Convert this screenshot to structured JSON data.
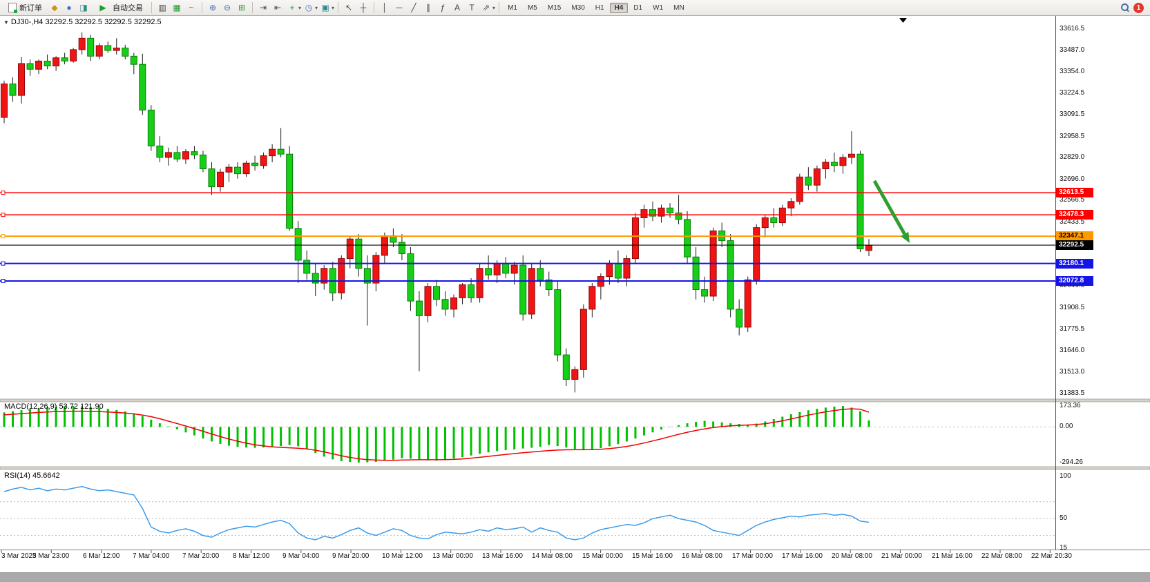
{
  "toolbar": {
    "new_order_label": "新订单",
    "autotrading_label": "自动交易",
    "timeframes": [
      "M1",
      "M5",
      "M15",
      "M30",
      "H1",
      "H4",
      "D1",
      "W1",
      "MN"
    ],
    "active_timeframe": "H4",
    "notification_count": "1",
    "icons": {
      "market_watch": "◆",
      "profile": "●",
      "terminal": "◨",
      "play": "▶",
      "bars": "▥",
      "candles": "▦",
      "line": "~",
      "zoom_in": "⊕",
      "zoom_out": "⊖",
      "tile": "⊞",
      "auto_scroll": "⇥",
      "shift": "⇤",
      "plus": "+",
      "clock": "◷",
      "template": "▣",
      "dropdown": "▾",
      "cursor": "↖",
      "crosshair": "┼",
      "vline": "│",
      "hline": "─",
      "tline": "╱",
      "channel": "∥",
      "fibo": "ƒ",
      "text": "A",
      "label": "T",
      "arrows": "⇗"
    }
  },
  "chart": {
    "title": "DJ30-,H4 32292.5 32292.5 32292.5 32292.5",
    "dropdown_glyph": "▼"
  },
  "chart_data": {
    "type": "candlestick",
    "symbol": "DJ30-",
    "period": "H4",
    "price_axis": {
      "top": 33616.5,
      "bottom": 31383.5,
      "labels": [
        "33616.5",
        "33487.0",
        "33354.0",
        "33224.5",
        "33091.5",
        "32958.5",
        "32829.0",
        "32696.0",
        "32566.5",
        "32433.5",
        "32041.5",
        "31908.5",
        "31775.5",
        "31646.0",
        "31513.0",
        "31383.5"
      ]
    },
    "time_labels": [
      "3 Mar 2023",
      "5 Mar 23:00",
      "6 Mar 12:00",
      "7 Mar 04:00",
      "7 Mar 20:00",
      "8 Mar 12:00",
      "9 Mar 04:00",
      "9 Mar 20:00",
      "10 Mar 12:00",
      "13 Mar 00:00",
      "13 Mar 16:00",
      "14 Mar 08:00",
      "15 Mar 00:00",
      "15 Mar 16:00",
      "16 Mar 08:00",
      "17 Mar 00:00",
      "17 Mar 16:00",
      "20 Mar 08:00",
      "21 Mar 00:00",
      "21 Mar 16:00",
      "22 Mar 08:00",
      "22 Mar 20:30"
    ],
    "colors": {
      "up": "#f01414",
      "down": "#17cf17",
      "up_border": "#8c0a0a",
      "down_border": "#0a7d0a",
      "wick": "#1c1c1c"
    },
    "candles": [
      [
        33075,
        33300,
        33040,
        33280
      ],
      [
        33280,
        33320,
        33170,
        33210
      ],
      [
        33210,
        33445,
        33160,
        33405
      ],
      [
        33405,
        33430,
        33330,
        33370
      ],
      [
        33370,
        33430,
        33340,
        33420
      ],
      [
        33420,
        33460,
        33370,
        33390
      ],
      [
        33390,
        33450,
        33360,
        33440
      ],
      [
        33440,
        33470,
        33400,
        33420
      ],
      [
        33420,
        33500,
        33410,
        33490
      ],
      [
        33490,
        33595,
        33460,
        33560
      ],
      [
        33560,
        33580,
        33420,
        33450
      ],
      [
        33450,
        33530,
        33430,
        33515
      ],
      [
        33515,
        33540,
        33470,
        33485
      ],
      [
        33485,
        33560,
        33460,
        33500
      ],
      [
        33500,
        33520,
        33430,
        33450
      ],
      [
        33450,
        33470,
        33340,
        33400
      ],
      [
        33400,
        33465,
        33090,
        33120
      ],
      [
        33120,
        33150,
        32870,
        32900
      ],
      [
        32900,
        32960,
        32800,
        32830
      ],
      [
        32830,
        32890,
        32780,
        32860
      ],
      [
        32860,
        32900,
        32800,
        32820
      ],
      [
        32820,
        32880,
        32790,
        32865
      ],
      [
        32865,
        32900,
        32820,
        32845
      ],
      [
        32845,
        32870,
        32740,
        32760
      ],
      [
        32760,
        32800,
        32600,
        32650
      ],
      [
        32650,
        32760,
        32620,
        32740
      ],
      [
        32740,
        32790,
        32680,
        32770
      ],
      [
        32770,
        32800,
        32700,
        32730
      ],
      [
        32730,
        32810,
        32710,
        32795
      ],
      [
        32795,
        32840,
        32750,
        32780
      ],
      [
        32780,
        32860,
        32760,
        32840
      ],
      [
        32840,
        32910,
        32800,
        32880
      ],
      [
        32880,
        33010,
        32830,
        32850
      ],
      [
        32850,
        32900,
        32380,
        32395
      ],
      [
        32395,
        32440,
        32060,
        32200
      ],
      [
        32200,
        32260,
        32080,
        32120
      ],
      [
        32120,
        32180,
        31980,
        32060
      ],
      [
        32060,
        32170,
        32020,
        32150
      ],
      [
        32150,
        32190,
        31950,
        32000
      ],
      [
        32000,
        32230,
        31960,
        32210
      ],
      [
        32210,
        32350,
        32150,
        32330
      ],
      [
        32330,
        32360,
        32100,
        32150
      ],
      [
        32150,
        32230,
        31800,
        32060
      ],
      [
        32060,
        32250,
        32010,
        32230
      ],
      [
        32230,
        32370,
        32180,
        32350
      ],
      [
        32350,
        32395,
        32280,
        32310
      ],
      [
        32310,
        32360,
        32200,
        32240
      ],
      [
        32240,
        32280,
        31890,
        31950
      ],
      [
        31950,
        32010,
        31520,
        31860
      ],
      [
        31860,
        32060,
        31820,
        32040
      ],
      [
        32040,
        32080,
        31920,
        31960
      ],
      [
        31960,
        32010,
        31860,
        31900
      ],
      [
        31900,
        31990,
        31850,
        31970
      ],
      [
        31970,
        32060,
        31930,
        32050
      ],
      [
        32050,
        32090,
        31940,
        31970
      ],
      [
        31970,
        32180,
        31940,
        32150
      ],
      [
        32150,
        32230,
        32080,
        32110
      ],
      [
        32110,
        32200,
        32060,
        32180
      ],
      [
        32180,
        32220,
        32090,
        32120
      ],
      [
        32120,
        32190,
        32050,
        32170
      ],
      [
        32170,
        32230,
        31830,
        31870
      ],
      [
        31870,
        32180,
        31840,
        32150
      ],
      [
        32150,
        32200,
        32040,
        32080
      ],
      [
        32080,
        32130,
        31980,
        32020
      ],
      [
        32020,
        32070,
        31580,
        31620
      ],
      [
        31620,
        31660,
        31430,
        31470
      ],
      [
        31470,
        31550,
        31390,
        31530
      ],
      [
        31530,
        31930,
        31480,
        31900
      ],
      [
        31900,
        32060,
        31850,
        32040
      ],
      [
        32040,
        32120,
        31960,
        32100
      ],
      [
        32100,
        32200,
        32050,
        32180
      ],
      [
        32180,
        32260,
        32060,
        32090
      ],
      [
        32090,
        32230,
        32040,
        32210
      ],
      [
        32210,
        32490,
        32180,
        32460
      ],
      [
        32460,
        32540,
        32400,
        32510
      ],
      [
        32510,
        32560,
        32440,
        32470
      ],
      [
        32470,
        32540,
        32430,
        32520
      ],
      [
        32520,
        32550,
        32460,
        32490
      ],
      [
        32490,
        32600,
        32420,
        32450
      ],
      [
        32450,
        32500,
        32180,
        32220
      ],
      [
        32220,
        32280,
        31960,
        32020
      ],
      [
        32020,
        32100,
        31940,
        31980
      ],
      [
        31980,
        32400,
        31950,
        32380
      ],
      [
        32380,
        32430,
        32280,
        32320
      ],
      [
        32320,
        32360,
        31850,
        31900
      ],
      [
        31900,
        31960,
        31740,
        31790
      ],
      [
        31790,
        32100,
        31760,
        32080
      ],
      [
        32080,
        32420,
        32050,
        32400
      ],
      [
        32400,
        32480,
        32340,
        32460
      ],
      [
        32460,
        32520,
        32400,
        32430
      ],
      [
        32430,
        32540,
        32410,
        32520
      ],
      [
        32520,
        32580,
        32470,
        32560
      ],
      [
        32560,
        32730,
        32540,
        32710
      ],
      [
        32710,
        32770,
        32630,
        32660
      ],
      [
        32660,
        32780,
        32620,
        32760
      ],
      [
        32760,
        32820,
        32700,
        32800
      ],
      [
        32800,
        32860,
        32740,
        32780
      ],
      [
        32780,
        32850,
        32730,
        32830
      ],
      [
        32830,
        32990,
        32790,
        32850
      ],
      [
        32850,
        32870,
        32250,
        32270
      ],
      [
        32260,
        32330,
        32225,
        32292.5
      ]
    ],
    "lines": [
      {
        "value": 32613.5,
        "color": "#ff0000",
        "label": "32613.5",
        "width": 1.5,
        "text": "#fff",
        "handle": true
      },
      {
        "value": 32478.3,
        "color": "#ff0000",
        "label": "32478.3",
        "width": 1.5,
        "text": "#fff",
        "handle": true
      },
      {
        "value": 32347.1,
        "color": "#ff9900",
        "label": "32347.1",
        "width": 2,
        "text": "#000",
        "handle": true
      },
      {
        "value": 32292.5,
        "color": "#000000",
        "label": "32292.5",
        "width": 1.2,
        "text": "#fff",
        "handle": false
      },
      {
        "value": 32180.1,
        "color": "#1414e6",
        "label": "32180.1",
        "width": 2,
        "text": "#fff",
        "handle": true
      },
      {
        "value": 32072.8,
        "color": "#1414e6",
        "label": "32072.8",
        "width": 2,
        "text": "#fff",
        "handle": true
      }
    ],
    "arrow": {
      "from": [
        1266,
        240
      ],
      "to": [
        1317,
        330
      ],
      "color": "#2f9e2f"
    },
    "indicators": [
      {
        "name": "MACD",
        "label": "MACD(12,26,9) 53.72 121.90",
        "axis_labels": [
          "173.36",
          "0.00",
          "-294.26"
        ],
        "max": 173.36,
        "min": -294.26,
        "hist_color": "#00c000",
        "signal_color": "#f00000",
        "histogram": [
          120,
          130,
          138,
          148,
          155,
          162,
          168,
          172,
          173,
          170,
          165,
          158,
          150,
          140,
          128,
          112,
          90,
          60,
          30,
          5,
          -20,
          -45,
          -70,
          -95,
          -120,
          -140,
          -155,
          -165,
          -170,
          -172,
          -170,
          -165,
          -158,
          -150,
          -160,
          -185,
          -215,
          -245,
          -268,
          -282,
          -290,
          -294,
          -292,
          -288,
          -280,
          -270,
          -258,
          -262,
          -270,
          -276,
          -278,
          -272,
          -262,
          -250,
          -236,
          -222,
          -210,
          -200,
          -192,
          -186,
          -178,
          -172,
          -164,
          -150,
          -158,
          -170,
          -182,
          -190,
          -186,
          -175,
          -160,
          -142,
          -120,
          -96,
          -70,
          -45,
          -22,
          -2,
          15,
          30,
          42,
          50,
          45,
          38,
          30,
          25,
          20,
          28,
          45,
          65,
          85,
          105,
          122,
          138,
          150,
          160,
          168,
          173,
          160,
          130,
          53.72
        ],
        "signal": [
          100,
          105,
          110,
          115,
          120,
          124,
          127,
          129,
          130,
          130,
          129,
          127,
          124,
          120,
          115,
          108,
          98,
          85,
          68,
          48,
          28,
          8,
          -14,
          -36,
          -58,
          -80,
          -100,
          -118,
          -134,
          -147,
          -157,
          -164,
          -169,
          -172,
          -176,
          -182,
          -192,
          -206,
          -222,
          -238,
          -252,
          -263,
          -270,
          -274,
          -276,
          -276,
          -274,
          -272,
          -271,
          -271,
          -271,
          -270,
          -268,
          -264,
          -258,
          -251,
          -243,
          -235,
          -227,
          -220,
          -213,
          -207,
          -201,
          -195,
          -191,
          -189,
          -188,
          -188,
          -187,
          -184,
          -179,
          -171,
          -161,
          -148,
          -133,
          -116,
          -98,
          -79,
          -61,
          -44,
          -29,
          -16,
          -5,
          3,
          9,
          13,
          16,
          20,
          27,
          38,
          51,
          66,
          82,
          98,
          112,
          125,
          136,
          145,
          150,
          146,
          121.9
        ]
      },
      {
        "name": "RSI",
        "label": "RSI(14) 45.6642",
        "axis_labels": [
          "100",
          "50",
          "15"
        ],
        "scale_min": 15,
        "scale_max": 100,
        "levels": [
          70,
          50,
          30
        ],
        "color": "#3d9be9",
        "values": [
          82,
          85,
          87,
          84,
          86,
          83,
          85,
          84,
          86,
          88,
          85,
          83,
          84,
          82,
          80,
          78,
          62,
          40,
          35,
          33,
          36,
          38,
          35,
          30,
          28,
          33,
          37,
          39,
          41,
          40,
          43,
          46,
          48,
          44,
          33,
          27,
          25,
          29,
          27,
          31,
          36,
          39,
          33,
          30,
          34,
          38,
          36,
          30,
          27,
          26,
          31,
          34,
          33,
          32,
          34,
          37,
          35,
          39,
          37,
          38,
          40,
          34,
          39,
          36,
          34,
          27,
          25,
          27,
          33,
          37,
          39,
          41,
          43,
          42,
          45,
          50,
          52,
          54,
          50,
          48,
          46,
          42,
          36,
          34,
          32,
          30,
          36,
          42,
          46,
          49,
          51,
          53,
          52,
          54,
          55,
          56,
          54,
          55,
          53,
          47,
          45.66
        ]
      }
    ]
  }
}
